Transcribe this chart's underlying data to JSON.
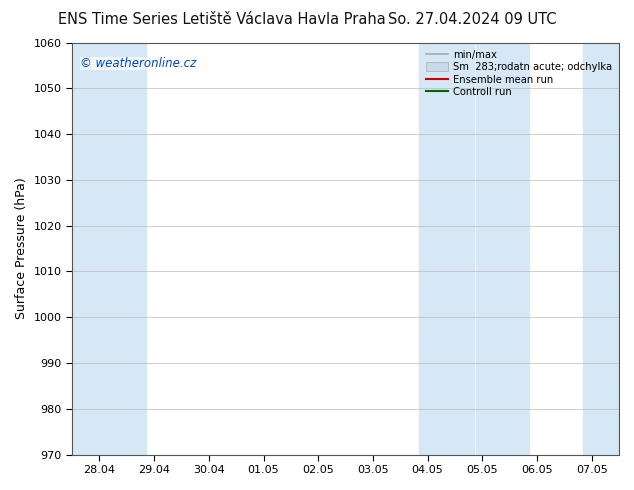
{
  "title_left": "ENS Time Series Letiště Václava Havla Praha",
  "title_right": "So. 27.04.2024 09 UTC",
  "ylabel": "Surface Pressure (hPa)",
  "ylim": [
    970,
    1060
  ],
  "yticks": [
    970,
    980,
    990,
    1000,
    1010,
    1020,
    1030,
    1040,
    1050,
    1060
  ],
  "x_labels": [
    "28.04",
    "29.04",
    "30.04",
    "01.05",
    "02.05",
    "03.05",
    "04.05",
    "05.05",
    "06.05",
    "07.05"
  ],
  "x_values": [
    0,
    1,
    2,
    3,
    4,
    5,
    6,
    7,
    8,
    9
  ],
  "shade_color": "#d6e8f5",
  "watermark": "© weatheronline.cz",
  "legend_entries": [
    {
      "label": "min/max",
      "color": "#aaaaaa",
      "lw": 1.2,
      "ls": "-",
      "type": "line"
    },
    {
      "label": "Sm  283;rodatn acute; odchylka",
      "color": "#c8daea",
      "lw": 8,
      "ls": "-",
      "type": "patch"
    },
    {
      "label": "Ensemble mean run",
      "color": "#cc0000",
      "lw": 1.5,
      "ls": "-",
      "type": "line"
    },
    {
      "label": "Controll run",
      "color": "#006600",
      "lw": 1.5,
      "ls": "-",
      "type": "line"
    }
  ],
  "bg_color": "#ffffff",
  "plot_bg_color": "#ffffff",
  "title_fontsize": 10.5,
  "axis_label_fontsize": 9,
  "tick_fontsize": 8,
  "watermark_color": "#0044cc",
  "watermark_fontsize": 8.5
}
